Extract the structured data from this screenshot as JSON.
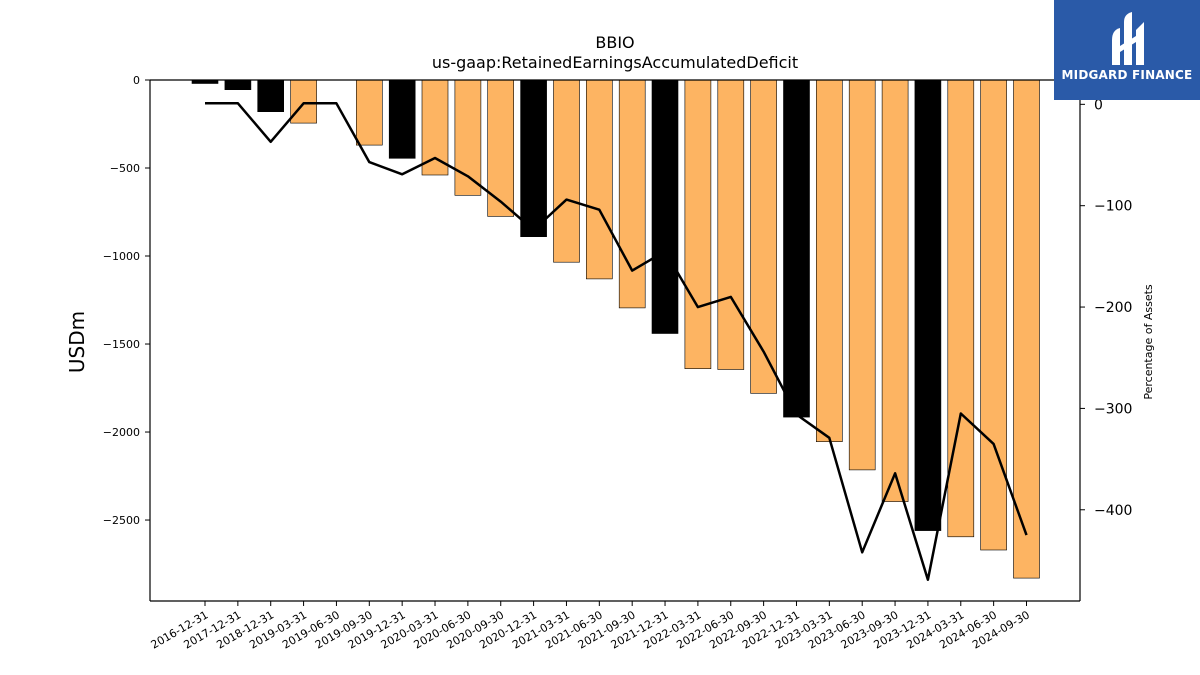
{
  "chart_data": {
    "type": "bar",
    "title": "BBIO",
    "subtitle": "us-gaap:RetainedEarningsAccumulatedDeficit",
    "ylabel": "USDm",
    "ylabel_right": "Percentage of Assets",
    "ylim": [
      -2960,
      0
    ],
    "ylim_right": [
      -490,
      24
    ],
    "yticks": [
      0,
      -500,
      -1000,
      -1500,
      -2000,
      -2500
    ],
    "yticks_right": [
      0,
      -100,
      -200,
      -300,
      -400
    ],
    "categories": [
      "2016-12-31",
      "2017-12-31",
      "2018-12-31",
      "2019-03-31",
      "2019-06-30",
      "2019-09-30",
      "2019-12-31",
      "2020-03-31",
      "2020-06-30",
      "2020-09-30",
      "2020-12-31",
      "2021-03-31",
      "2021-06-30",
      "2021-09-30",
      "2021-12-31",
      "2022-03-31",
      "2022-06-30",
      "2022-09-30",
      "2022-12-31",
      "2023-03-31",
      "2023-06-30",
      "2023-09-30",
      "2023-12-31",
      "2024-03-31",
      "2024-06-30",
      "2024-09-30"
    ],
    "series": [
      {
        "type": "bar",
        "values": [
          -20,
          -55,
          -180,
          -245,
          null,
          -370,
          -445,
          -540,
          -655,
          -775,
          -890,
          -1035,
          -1130,
          -1295,
          -1440,
          -1640,
          -1645,
          -1780,
          -1915,
          -2055,
          -2215,
          -2395,
          -2560,
          -2595,
          -2670,
          -2830
        ],
        "colors": [
          "#000000",
          "#000000",
          "#000000",
          "#fdb462",
          null,
          "#fdb462",
          "#000000",
          "#fdb462",
          "#fdb462",
          "#fdb462",
          "#000000",
          "#fdb462",
          "#fdb462",
          "#fdb462",
          "#000000",
          "#fdb462",
          "#fdb462",
          "#fdb462",
          "#000000",
          "#fdb462",
          "#fdb462",
          "#fdb462",
          "#000000",
          "#fdb462",
          "#fdb462",
          "#fdb462"
        ]
      },
      {
        "type": "line",
        "axis": "right",
        "color": "#000000",
        "values": [
          1,
          1,
          -37,
          1,
          1,
          -57,
          -69,
          -53,
          -71,
          -96,
          -124,
          -94,
          -104,
          -164,
          -145,
          -200,
          -190,
          -244,
          -306,
          -329,
          -442,
          -364,
          -469,
          -305,
          -335,
          -425
        ]
      }
    ]
  },
  "logo": {
    "text": "MIDGARD FINANCE"
  }
}
